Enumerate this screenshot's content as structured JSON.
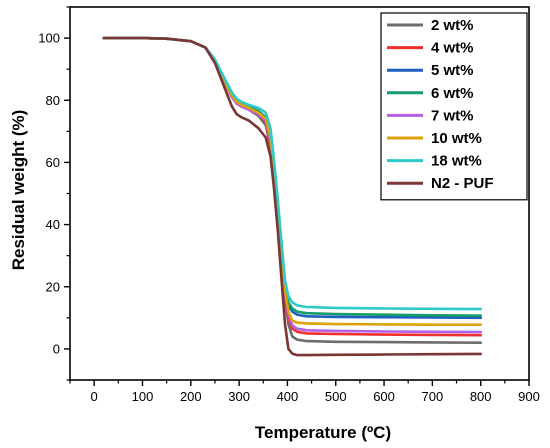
{
  "chart_data": {
    "type": "line",
    "xlabel": "Temperature (ºC)",
    "ylabel": "Residual weight (%)",
    "xlim": [
      -50,
      900
    ],
    "ylim": [
      -10,
      110
    ],
    "xticks": [
      0,
      100,
      200,
      300,
      400,
      500,
      600,
      700,
      800,
      900
    ],
    "yticks": [
      0,
      20,
      40,
      60,
      80,
      100
    ],
    "grid": false,
    "legend_position": "top-right",
    "x": [
      20,
      50,
      100,
      150,
      200,
      230,
      250,
      270,
      285,
      295,
      305,
      320,
      340,
      355,
      365,
      372,
      380,
      388,
      395,
      402,
      410,
      420,
      440,
      500,
      600,
      700,
      800
    ],
    "series": [
      {
        "name": "2 wt%",
        "color": "#6d6d6d",
        "values": [
          100,
          100,
          100,
          99.8,
          99,
          97,
          93,
          86,
          81,
          79,
          78,
          77,
          75,
          72,
          65,
          55,
          42,
          28,
          16,
          8,
          4,
          3,
          2.5,
          2.3,
          2.2,
          2.1,
          2
        ]
      },
      {
        "name": "4 wt%",
        "color": "#f0302e",
        "values": [
          100,
          100,
          100,
          99.8,
          99,
          97,
          93,
          86,
          81,
          79,
          78,
          77,
          75.5,
          73,
          66,
          56,
          43,
          29,
          17,
          10,
          6.5,
          5.5,
          5,
          4.8,
          4.6,
          4.5,
          4.4
        ]
      },
      {
        "name": "5 wt%",
        "color": "#1d5fbf",
        "values": [
          100,
          100,
          100,
          99.8,
          99,
          97,
          93,
          86,
          81.5,
          79.5,
          78.5,
          77.5,
          76,
          74,
          68,
          58,
          45,
          31,
          19,
          14,
          12,
          11,
          10.5,
          10.3,
          10.2,
          10.1,
          10
        ]
      },
      {
        "name": "6 wt%",
        "color": "#159c69",
        "values": [
          100,
          100,
          100,
          99.8,
          99,
          97,
          93,
          86.5,
          82,
          80,
          79,
          78,
          76.5,
          74.5,
          69,
          59,
          46,
          32,
          21,
          15,
          13,
          12,
          11.5,
          11.2,
          11,
          10.8,
          10.7
        ]
      },
      {
        "name": "7 wt%",
        "color": "#b55ee6",
        "values": [
          100,
          100,
          100,
          99.8,
          99,
          97,
          93,
          86,
          81,
          79,
          78,
          77,
          75.5,
          73.5,
          67,
          57,
          44,
          30,
          18,
          11,
          7.5,
          6.5,
          6,
          5.8,
          5.6,
          5.5,
          5.4
        ]
      },
      {
        "name": "10 wt%",
        "color": "#dba20c",
        "values": [
          100,
          100,
          100,
          99.8,
          99,
          97,
          93,
          86,
          81.5,
          79.5,
          78.5,
          77.5,
          76,
          74,
          68,
          58,
          45,
          31,
          19,
          12,
          9,
          8.5,
          8.2,
          8,
          7.9,
          7.8,
          7.8
        ]
      },
      {
        "name": "18 wt%",
        "color": "#2ec9c9",
        "values": [
          100,
          100,
          100,
          99.8,
          99,
          97,
          93,
          87,
          82.5,
          80.5,
          79.5,
          78.5,
          77.5,
          76,
          71,
          61,
          48,
          34,
          22,
          17,
          15,
          14,
          13.5,
          13.2,
          13,
          12.9,
          12.8
        ]
      },
      {
        "name": "N2 - PUF",
        "color": "#7a3535",
        "values": [
          100,
          100,
          100,
          99.8,
          99,
          97,
          92,
          84,
          78,
          75.5,
          74.5,
          73.5,
          71,
          68,
          62,
          52,
          38,
          22,
          8,
          0,
          -1.5,
          -2,
          -2,
          -1.9,
          -1.8,
          -1.7,
          -1.6
        ]
      }
    ]
  }
}
